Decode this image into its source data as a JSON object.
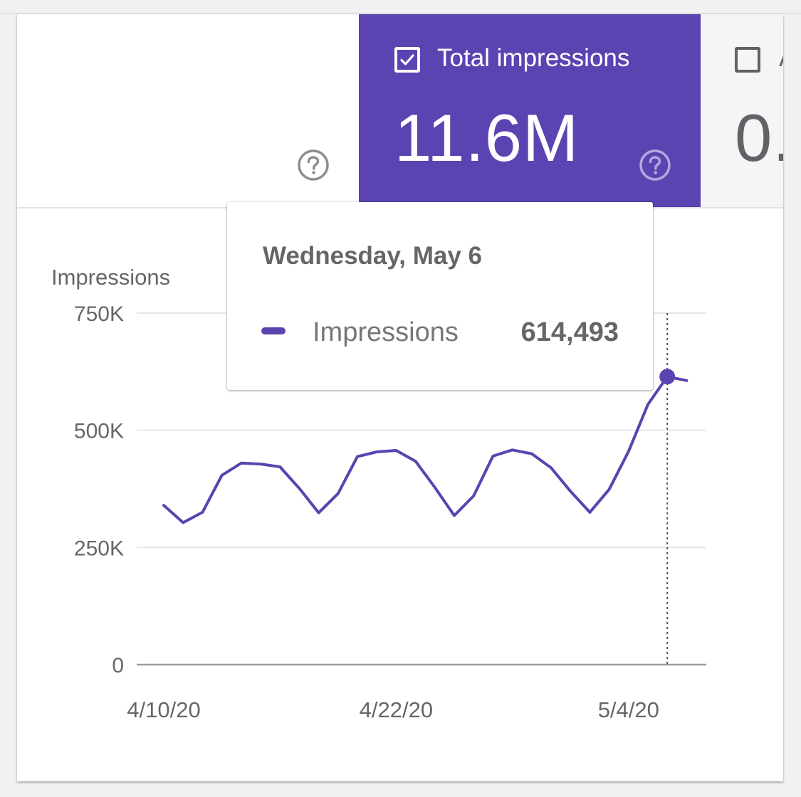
{
  "metrics": {
    "active": {
      "label": "Total impressions",
      "value": "11.6M",
      "checked": true
    },
    "next": {
      "label": "A",
      "value": "0.",
      "checked": false
    }
  },
  "tooltip": {
    "date": "Wednesday, May 6",
    "series_name": "Impressions",
    "value": "614,493"
  },
  "colors": {
    "accent": "#5b43b1",
    "grid": "#e6e6e6",
    "axis": "#9e9e9e",
    "text": "#666666"
  },
  "icons": {
    "checked": "checkbox-checked-icon",
    "unchecked": "checkbox-unchecked-icon",
    "help": "help-circle-icon"
  },
  "chart_data": {
    "type": "line",
    "ylabel": "Impressions",
    "ylim": [
      0,
      750000
    ],
    "y_ticks": [
      0,
      250000,
      500000,
      750000
    ],
    "y_tick_labels": [
      "0",
      "250K",
      "500K",
      "750K"
    ],
    "x_tick_labels": [
      "4/10/20",
      "4/22/20",
      "5/4/20"
    ],
    "x_tick_indices": [
      0,
      12,
      24
    ],
    "grid": true,
    "highlight_index": 26,
    "series": [
      {
        "name": "Impressions",
        "x": [
          "4/10/20",
          "4/11/20",
          "4/12/20",
          "4/13/20",
          "4/14/20",
          "4/15/20",
          "4/16/20",
          "4/17/20",
          "4/18/20",
          "4/19/20",
          "4/20/20",
          "4/21/20",
          "4/22/20",
          "4/23/20",
          "4/24/20",
          "4/25/20",
          "4/26/20",
          "4/27/20",
          "4/28/20",
          "4/29/20",
          "4/30/20",
          "5/1/20",
          "5/2/20",
          "5/3/20",
          "5/4/20",
          "5/5/20",
          "5/6/20",
          "5/7/20"
        ],
        "values": [
          340000,
          303000,
          325000,
          404000,
          430000,
          428000,
          422000,
          376000,
          324000,
          365000,
          444000,
          454000,
          457000,
          434000,
          378000,
          318000,
          360000,
          445000,
          458000,
          450000,
          420000,
          370000,
          325000,
          374000,
          455000,
          555000,
          614493,
          606000
        ]
      }
    ]
  }
}
